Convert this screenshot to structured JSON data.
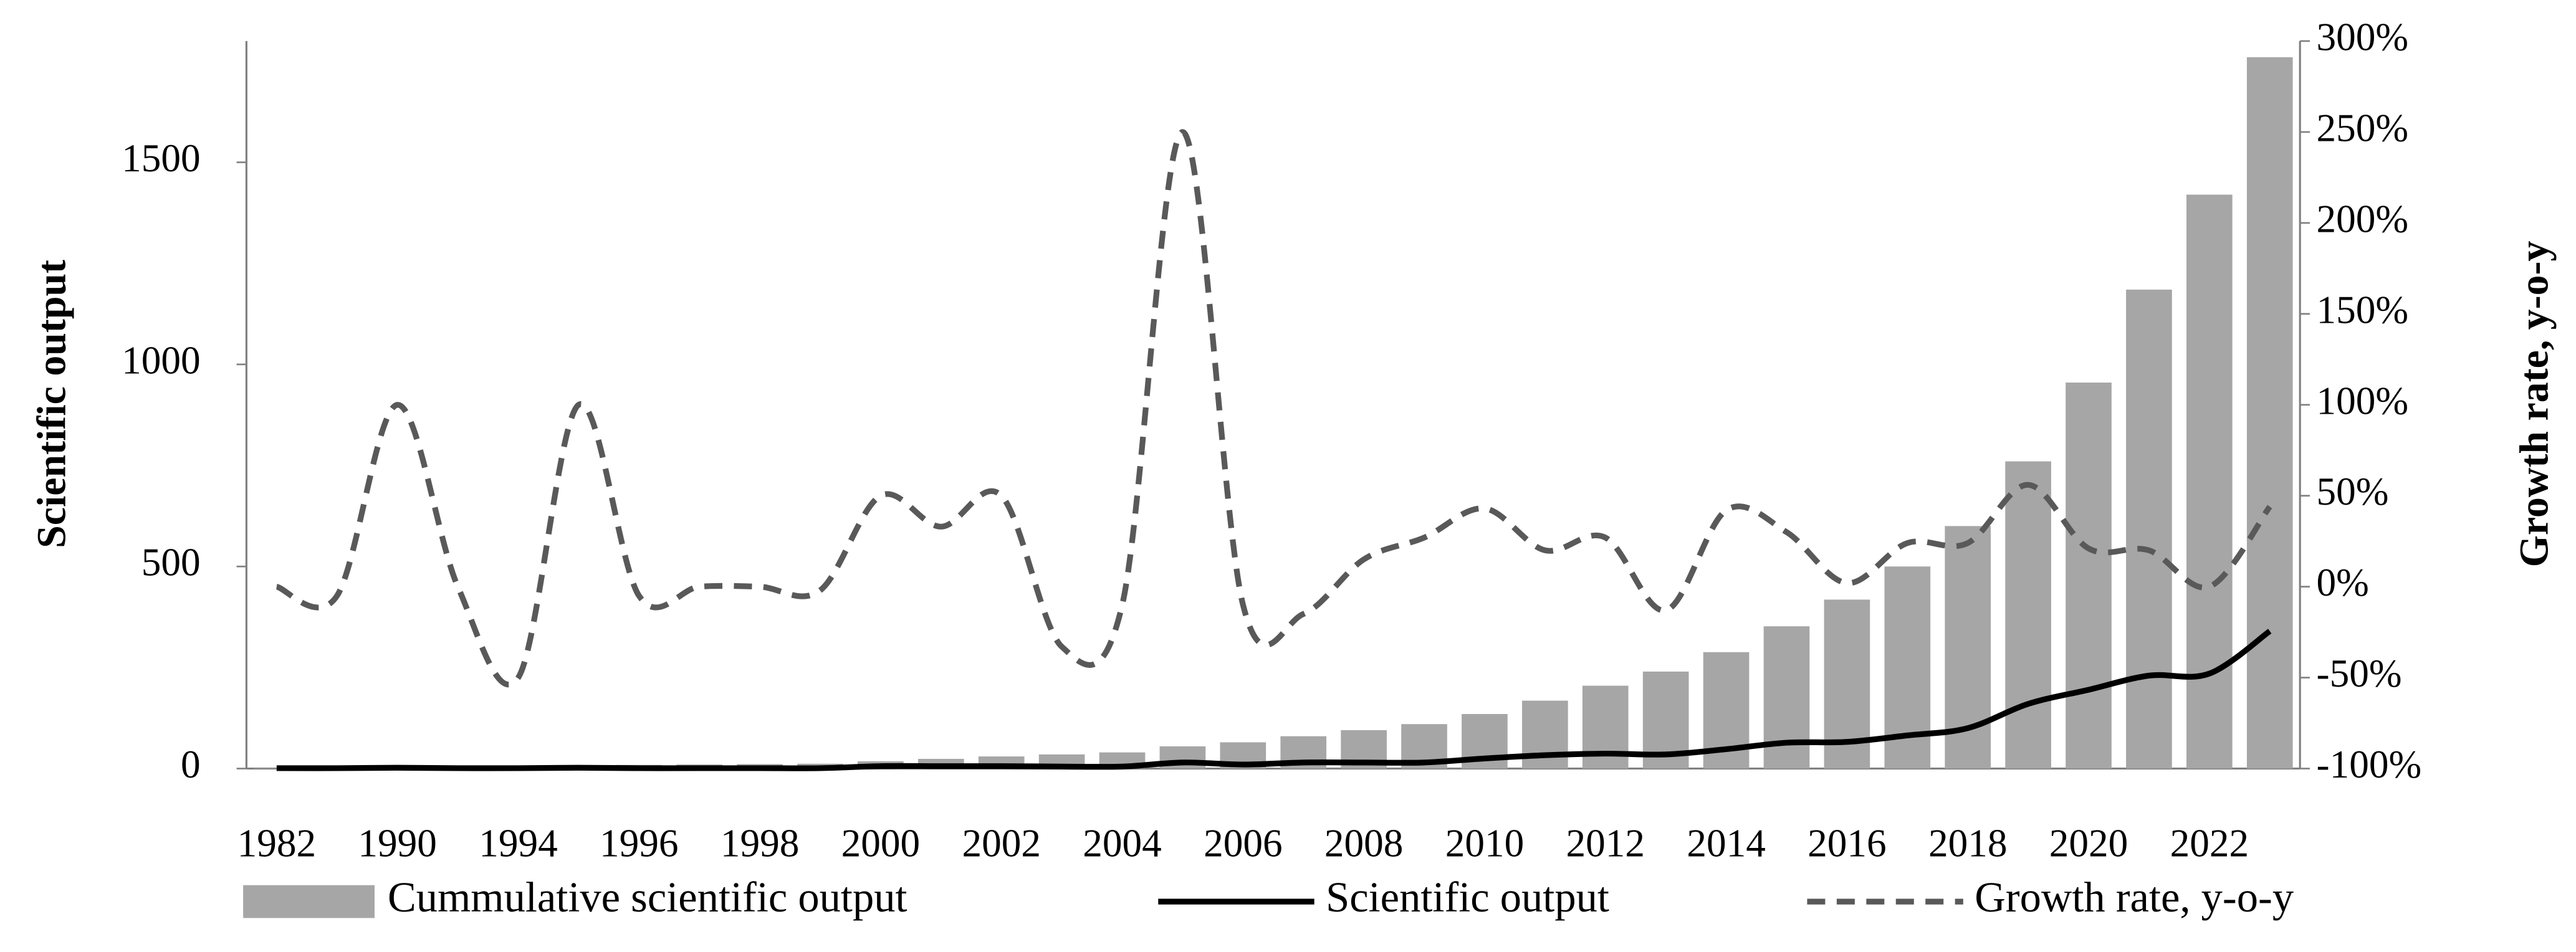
{
  "chart_data": {
    "type": "bar-line",
    "categories": [
      1982,
      null,
      1990,
      null,
      1994,
      null,
      1996,
      null,
      1998,
      null,
      2000,
      null,
      2002,
      null,
      2004,
      null,
      2006,
      null,
      2008,
      null,
      2010,
      null,
      2012,
      null,
      2014,
      null,
      2016,
      null,
      2018,
      null,
      2020,
      null,
      2022,
      null
    ],
    "y_label": "Scientific output",
    "y2_label": "Growth rate, y-o-y",
    "ylim": [
      0,
      1800
    ],
    "yticks": [
      0,
      500,
      1000,
      1500
    ],
    "y2lim": [
      -100,
      300
    ],
    "y2ticks": [
      {
        "value": -100,
        "label": "-100%"
      },
      {
        "value": -50,
        "label": "-50%"
      },
      {
        "value": 0,
        "label": "0%"
      },
      {
        "value": 50,
        "label": "50%"
      },
      {
        "value": 100,
        "label": "100%"
      },
      {
        "value": 150,
        "label": "150%"
      },
      {
        "value": 200,
        "label": "200%"
      },
      {
        "value": 250,
        "label": "250%"
      },
      {
        "value": 300,
        "label": "300%"
      }
    ],
    "legend": "bottom",
    "series": [
      {
        "name": "Cummulative scientific output",
        "kind": "bar",
        "color": "#a6a6a6",
        "values": [
          1,
          2,
          4,
          5,
          6,
          8,
          9,
          10,
          11,
          12,
          18,
          24,
          30,
          35,
          40,
          55,
          65,
          80,
          95,
          110,
          135,
          168,
          205,
          240,
          288,
          352,
          418,
          500,
          600,
          760,
          955,
          1185,
          1420,
          1760
        ]
      },
      {
        "name": "Scientific output",
        "kind": "line",
        "color": "#000000",
        "values": [
          1,
          1,
          2,
          1,
          1,
          2,
          1,
          1,
          1,
          1,
          6,
          6,
          6,
          5,
          5,
          15,
          10,
          15,
          15,
          15,
          25,
          33,
          37,
          35,
          48,
          64,
          66,
          82,
          100,
          160,
          195,
          230,
          235,
          340
        ]
      },
      {
        "name": "Growth rate, y-o-y",
        "kind": "dashed-line",
        "color": "#595959",
        "axis": "y2",
        "values": [
          0,
          -5,
          100,
          0,
          -50,
          100,
          -5,
          0,
          0,
          -2,
          50,
          33,
          50,
          -33,
          -10,
          250,
          -10,
          -15,
          15,
          27,
          43,
          20,
          27,
          -13,
          42,
          30,
          2,
          24,
          24,
          56,
          21,
          20,
          0,
          44
        ]
      }
    ]
  }
}
